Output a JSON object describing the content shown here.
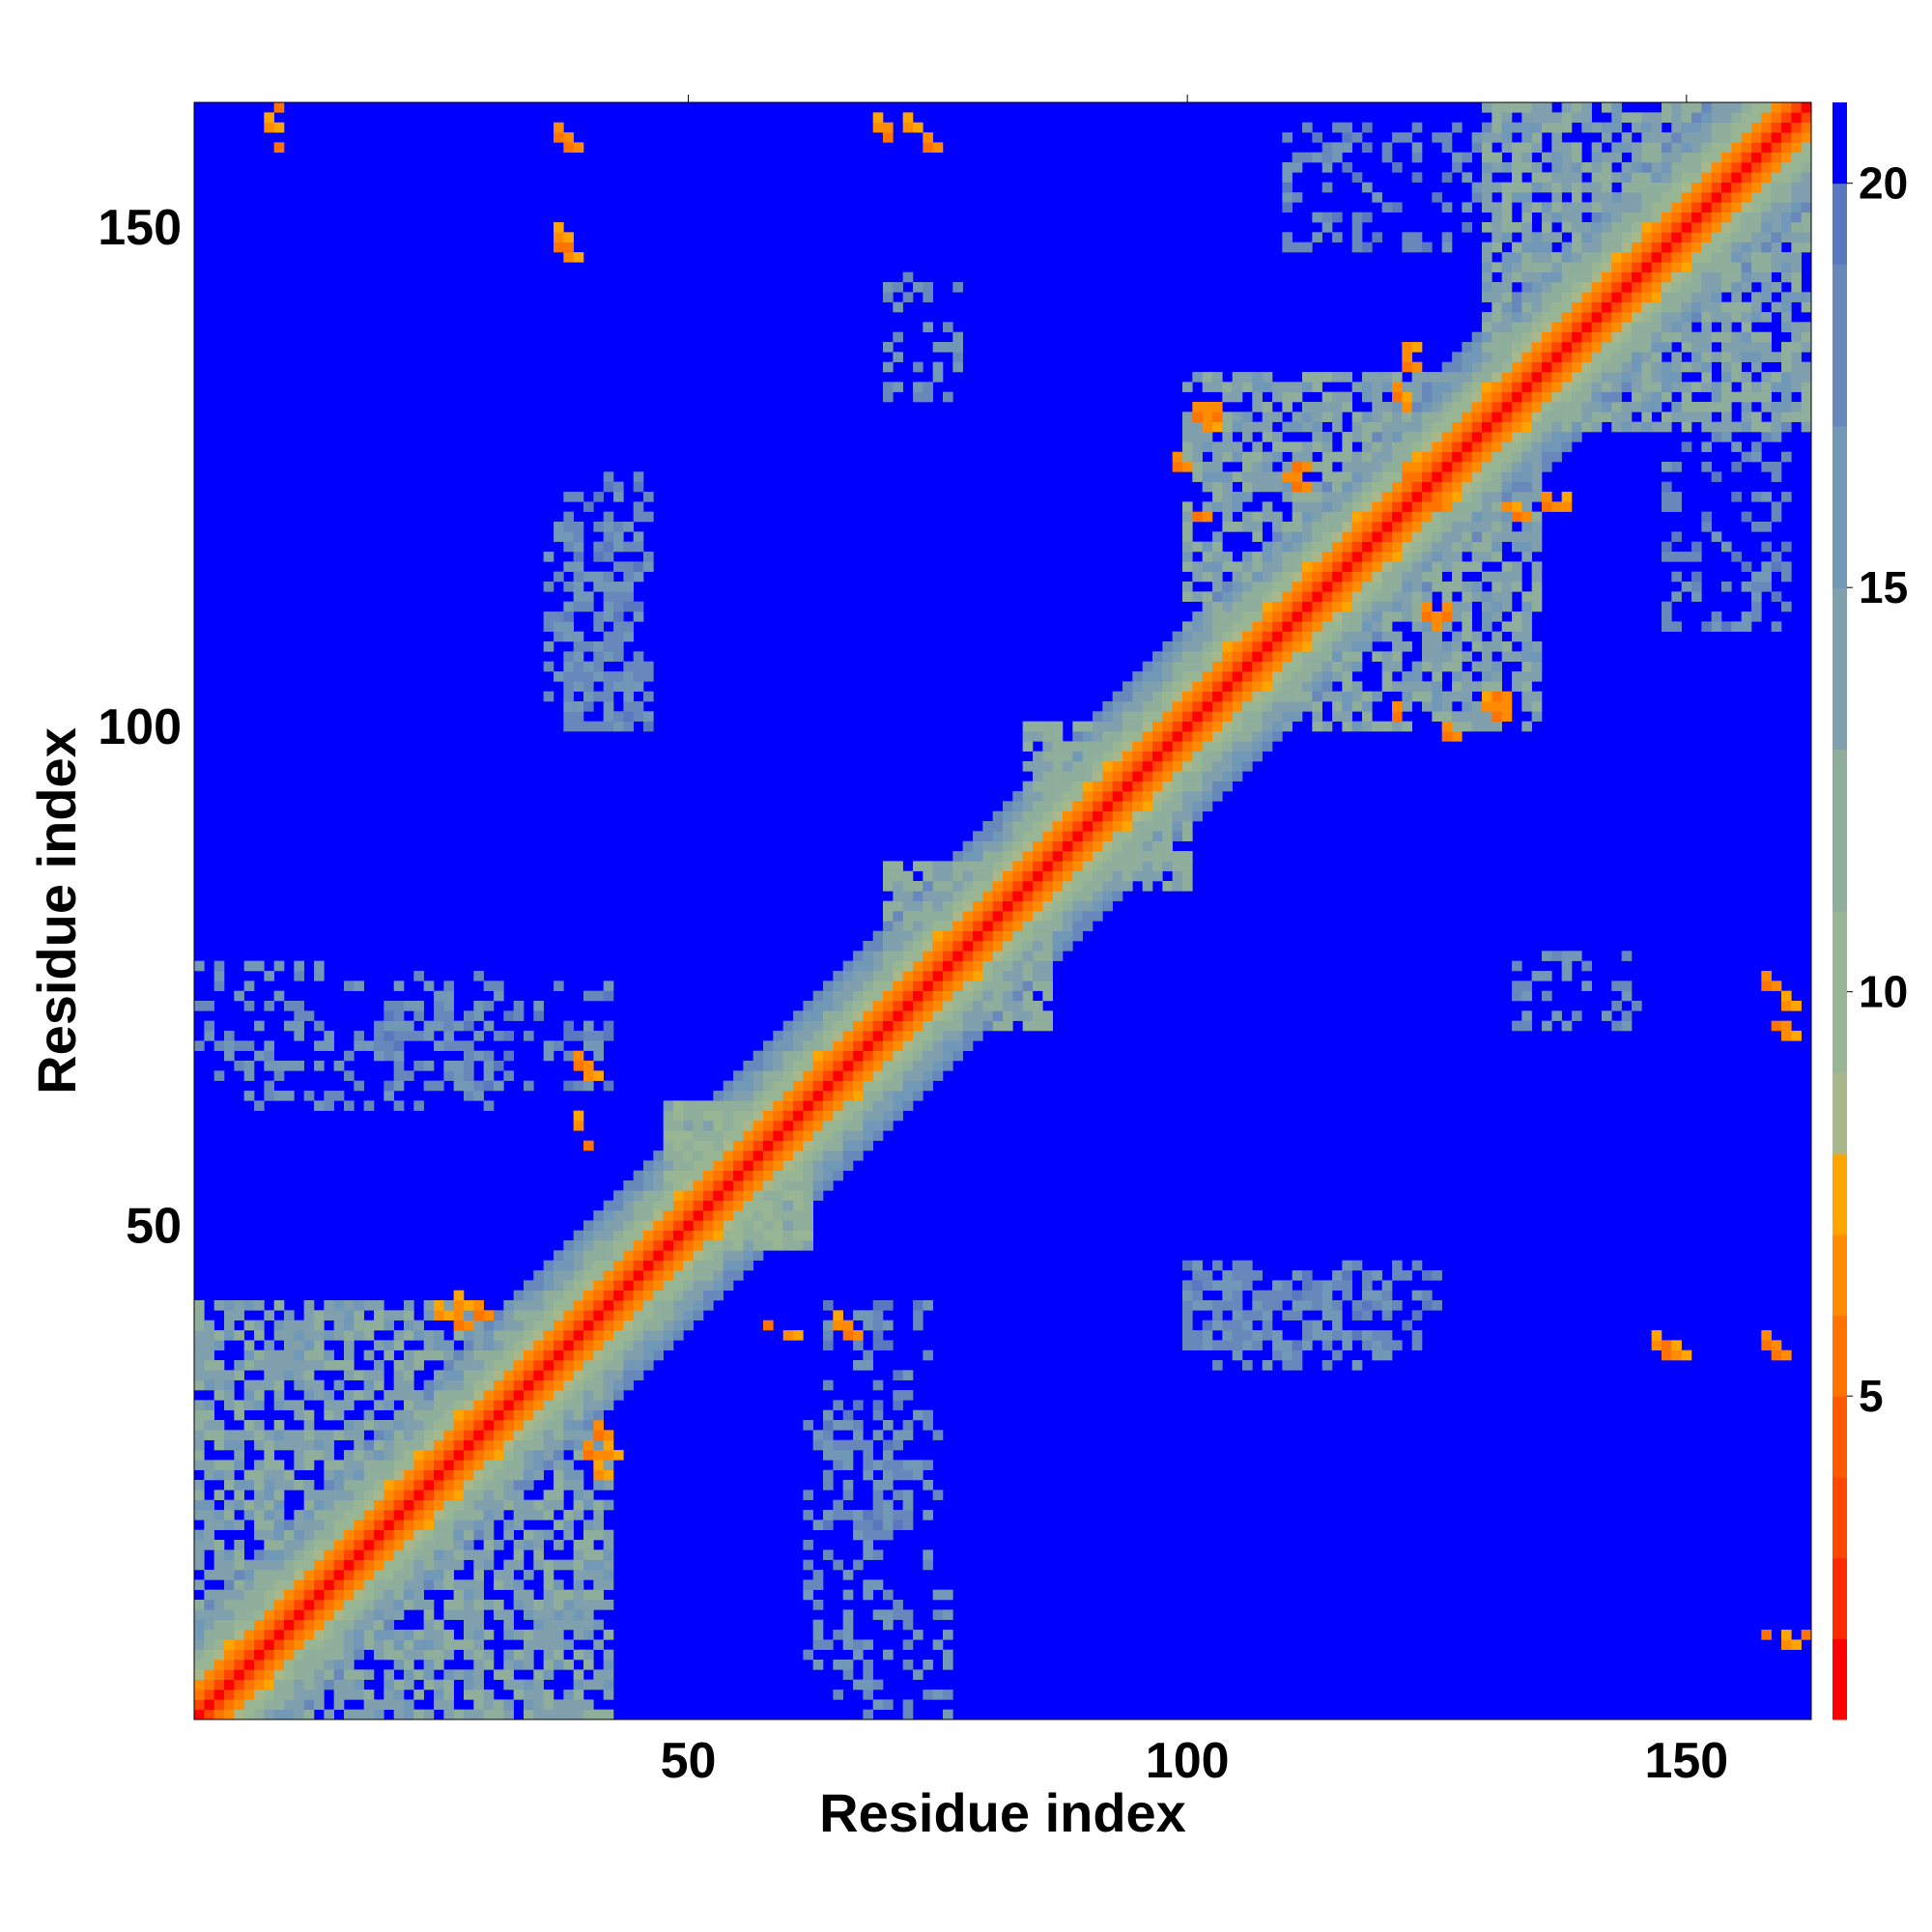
{
  "chart_data": {
    "type": "heatmap",
    "title": "",
    "xlabel": "Residue index",
    "ylabel": "Residue index",
    "xlim": [
      1,
      162
    ],
    "ylim": [
      1,
      162
    ],
    "n_residues": 162,
    "x_ticks": [
      50,
      100,
      150
    ],
    "y_ticks": [
      50,
      100,
      150
    ],
    "colorbar": {
      "range": [
        1,
        21
      ],
      "ticks": [
        5,
        10,
        15,
        20
      ],
      "levels": [
        {
          "max": 2,
          "color": "#ff0000"
        },
        {
          "max": 3,
          "color": "#ff2a00"
        },
        {
          "max": 4,
          "color": "#ff4600"
        },
        {
          "max": 5,
          "color": "#ff5a00"
        },
        {
          "max": 6,
          "color": "#ff7300"
        },
        {
          "max": 7,
          "color": "#ff8c00"
        },
        {
          "max": 8,
          "color": "#ffa500"
        },
        {
          "max": 9,
          "color": "#a8b88a"
        },
        {
          "max": 11,
          "color": "#99b694"
        },
        {
          "max": 13,
          "color": "#8fae9c"
        },
        {
          "max": 15,
          "color": "#80a0ae"
        },
        {
          "max": 17,
          "color": "#7198b6"
        },
        {
          "max": 19,
          "color": "#6888bb"
        },
        {
          "max": 20,
          "color": "#5a78c0"
        },
        {
          "max": 21,
          "color": "#0000ff"
        }
      ]
    },
    "background_value": 21,
    "diagonal_profile": [
      {
        "offset": 0,
        "value": 1
      },
      {
        "offset": 1,
        "value": 3.8
      },
      {
        "offset": 2,
        "value": 5.5
      },
      {
        "offset": 3,
        "value": 7
      },
      {
        "offset": 4,
        "value": 8.8
      },
      {
        "offset": 5,
        "value": 10.5
      },
      {
        "offset": 6,
        "value": 12
      },
      {
        "offset": 7,
        "value": 13.5
      },
      {
        "offset": 8,
        "value": 15
      },
      {
        "offset": 9,
        "value": 16.5
      },
      {
        "offset": 10,
        "value": 18
      }
    ],
    "contact_blocks": [
      {
        "i": [
          1,
          42
        ],
        "j": [
          1,
          42
        ],
        "value": 14,
        "density": 0.45
      },
      {
        "i": [
          48,
          62
        ],
        "j": [
          48,
          62
        ],
        "value": 12,
        "density": 0.8
      },
      {
        "i": [
          70,
          86
        ],
        "j": [
          70,
          86
        ],
        "value": 13,
        "density": 0.6
      },
      {
        "i": [
          84,
          100
        ],
        "j": [
          84,
          100
        ],
        "value": 13,
        "density": 0.6
      },
      {
        "i": [
          100,
          135
        ],
        "j": [
          100,
          135
        ],
        "value": 14,
        "density": 0.45
      },
      {
        "i": [
          130,
          162
        ],
        "j": [
          130,
          162
        ],
        "value": 14,
        "density": 0.5
      },
      {
        "i": [
          36,
          44
        ],
        "j": [
          100,
          120
        ],
        "value": 17,
        "density": 0.45
      },
      {
        "i": [
          1,
          30
        ],
        "j": [
          62,
          76
        ],
        "value": 17,
        "density": 0.3
      },
      {
        "i": [
          64,
          74
        ],
        "j": [
          20,
          42
        ],
        "value": 18,
        "density": 0.3
      },
      {
        "i": [
          100,
          125
        ],
        "j": [
          38,
          46
        ],
        "value": 18,
        "density": 0.45
      },
      {
        "i": [
          133,
          145
        ],
        "j": [
          70,
          77
        ],
        "value": 17,
        "density": 0.35
      },
      {
        "i": [
          110,
          130
        ],
        "j": [
          148,
          160
        ],
        "value": 18,
        "density": 0.3
      }
    ],
    "hot_spots": [
      {
        "i": 37,
        "j": 159,
        "value": 6
      },
      {
        "i": 38,
        "j": 158,
        "value": 6
      },
      {
        "i": 69,
        "j": 160,
        "value": 7
      },
      {
        "i": 70,
        "j": 159,
        "value": 6
      },
      {
        "i": 37,
        "j": 149,
        "value": 7
      },
      {
        "i": 38,
        "j": 148,
        "value": 6
      },
      {
        "i": 39,
        "j": 66,
        "value": 6
      },
      {
        "i": 40,
        "j": 65,
        "value": 7
      },
      {
        "i": 58,
        "j": 40,
        "value": 6
      },
      {
        "i": 60,
        "j": 39,
        "value": 7
      },
      {
        "i": 27,
        "j": 42,
        "value": 7
      },
      {
        "i": 29,
        "j": 41,
        "value": 6
      },
      {
        "i": 40,
        "j": 27,
        "value": 6
      },
      {
        "i": 41,
        "j": 25,
        "value": 7
      },
      {
        "i": 101,
        "j": 131,
        "value": 6
      },
      {
        "i": 102,
        "j": 130,
        "value": 7
      },
      {
        "i": 99,
        "j": 126,
        "value": 6
      },
      {
        "i": 110,
        "j": 125,
        "value": 7
      },
      {
        "i": 111,
        "j": 126,
        "value": 6
      },
      {
        "i": 121,
        "j": 133,
        "value": 6
      },
      {
        "i": 122,
        "j": 132,
        "value": 7
      },
      {
        "i": 122,
        "j": 125,
        "value": 6
      },
      {
        "i": 123,
        "j": 124,
        "value": 7
      },
      {
        "i": 136,
        "j": 122,
        "value": 6
      },
      {
        "i": 138,
        "j": 122,
        "value": 7
      },
      {
        "i": 124,
        "j": 111,
        "value": 6
      },
      {
        "i": 126,
        "j": 111,
        "value": 7
      },
      {
        "i": 131,
        "j": 103,
        "value": 6
      },
      {
        "i": 132,
        "j": 102,
        "value": 7
      },
      {
        "i": 121,
        "j": 101,
        "value": 6
      },
      {
        "i": 147,
        "j": 38,
        "value": 7
      },
      {
        "i": 148,
        "j": 37,
        "value": 6
      },
      {
        "i": 158,
        "j": 74,
        "value": 6
      },
      {
        "i": 160,
        "j": 72,
        "value": 7
      },
      {
        "i": 159,
        "j": 37,
        "value": 6
      },
      {
        "i": 158,
        "j": 9,
        "value": 6
      },
      {
        "i": 160,
        "j": 8,
        "value": 7
      },
      {
        "i": 9,
        "j": 162,
        "value": 6
      },
      {
        "i": 8,
        "j": 160,
        "value": 7
      }
    ]
  }
}
